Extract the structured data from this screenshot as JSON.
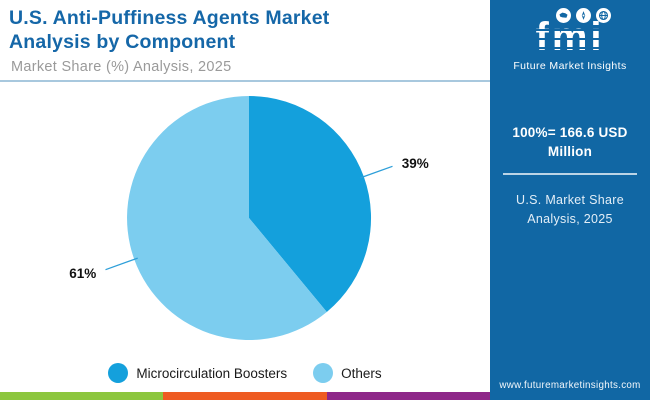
{
  "header": {
    "title_lines": [
      "U.S. Anti-Puffiness Agents Market",
      "Analysis by Component"
    ],
    "subtitle": "Market Share (%) Analysis, 2025"
  },
  "chart_data": {
    "type": "pie",
    "title": "U.S. Anti-Puffiness Agents Market Analysis by Component",
    "subtitle": "Market Share (%) Analysis, 2025",
    "slices": [
      {
        "label": "Microcirculation Boosters",
        "value": 39,
        "display": "39%",
        "color": "#14A0DC"
      },
      {
        "label": "Others",
        "value": 61,
        "display": "61%",
        "color": "#7CCDEF"
      }
    ],
    "start_angle_deg": 0,
    "direction": "clockwise",
    "legend_position": "bottom",
    "label_color": "#111111",
    "leader_line_color": "#2E9FD9",
    "total_note": "100%= 166.6 USD Million"
  },
  "sidebar": {
    "logo_text": "fmi",
    "logo_tagline": "Future Market Insights",
    "stat": "100%= 166.6 USD Million",
    "note": "U.S. Market Share Analysis, 2025",
    "website": "www.futuremarketinsights.com",
    "background": "#1167A4"
  },
  "footer_bar": {
    "colors": [
      "#8CC63E",
      "#EE5B22",
      "#8E2789"
    ]
  }
}
